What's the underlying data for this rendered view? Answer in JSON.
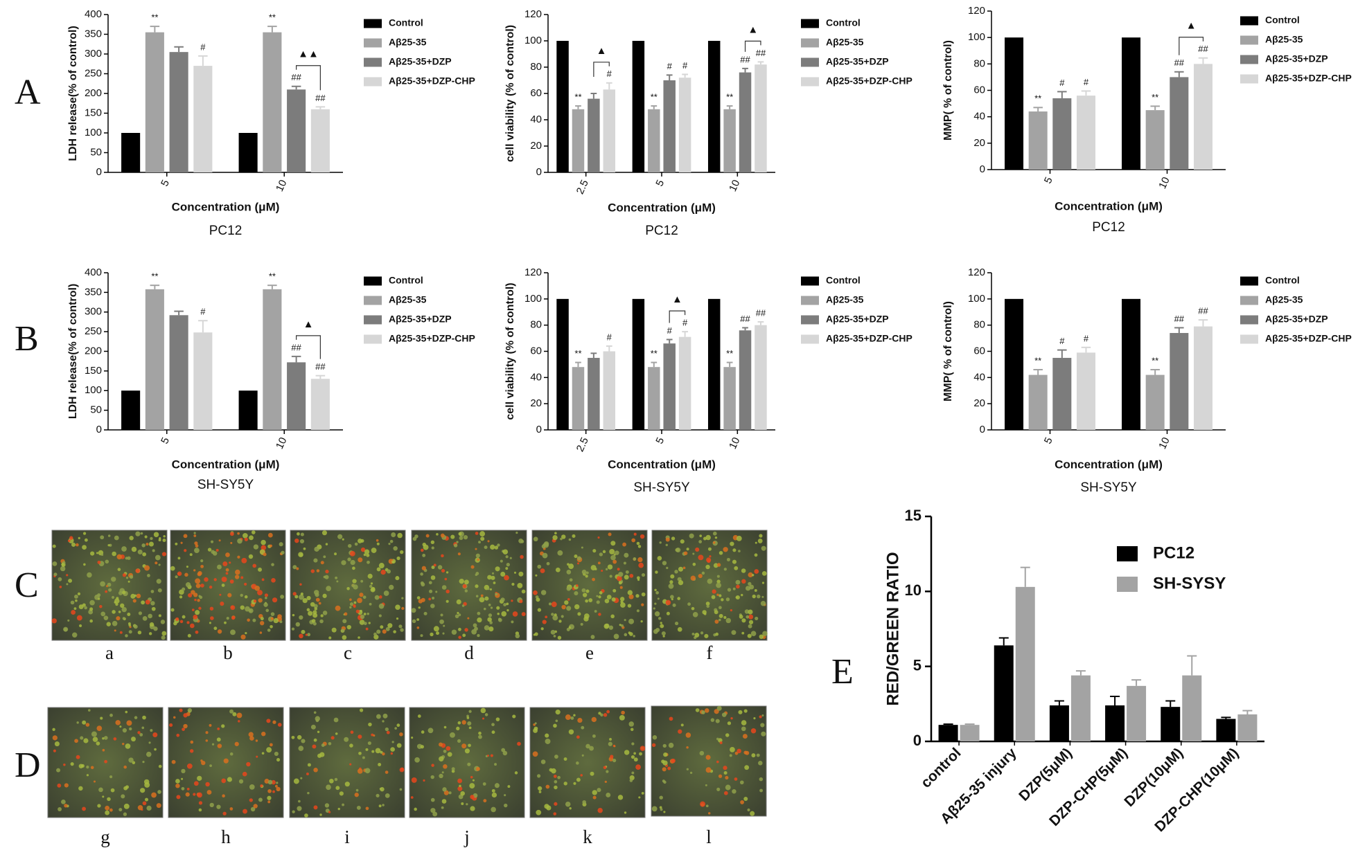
{
  "panel_labels": [
    "A",
    "B",
    "C",
    "D",
    "E"
  ],
  "image_labels": [
    "a",
    "b",
    "c",
    "d",
    "e",
    "f",
    "g",
    "h",
    "i",
    "j",
    "k",
    "l"
  ],
  "chart_data": [
    {
      "type": "bar",
      "ylabel": "LDH release(% of control)",
      "xlabel": "Concentration (μM)",
      "subtitle": "PC12",
      "categories": [
        "5",
        "10"
      ],
      "ylim": [
        0,
        400
      ],
      "yticks": [
        0,
        50,
        100,
        150,
        200,
        250,
        300,
        350,
        400
      ],
      "series": [
        {
          "name": "Control",
          "color": "#000000",
          "values": [
            100,
            100
          ],
          "errors": [
            0,
            0
          ],
          "annotations": [
            null,
            null
          ]
        },
        {
          "name": "Aβ25-35",
          "color": "#a3a3a3",
          "values": [
            355,
            355
          ],
          "errors": [
            15,
            15
          ],
          "annotations": [
            "**",
            "**"
          ]
        },
        {
          "name": "Aβ25-35+DZP",
          "color": "#7c7c7c",
          "values": [
            305,
            210
          ],
          "errors": [
            13,
            8
          ],
          "annotations": [
            null,
            "##"
          ]
        },
        {
          "name": "Aβ25-35+DZP-CHP",
          "color": "#d6d6d6",
          "values": [
            270,
            160
          ],
          "errors": [
            25,
            6
          ],
          "annotations": [
            "#",
            "##"
          ]
        }
      ],
      "brackets": [
        {
          "category": "10",
          "label": "▲▲"
        }
      ]
    },
    {
      "type": "bar",
      "ylabel": "cell viability (% of control)",
      "xlabel": "Concentration (μM)",
      "subtitle": "PC12",
      "categories": [
        "2.5",
        "5",
        "10"
      ],
      "ylim": [
        0,
        120
      ],
      "yticks": [
        0,
        20,
        40,
        60,
        80,
        100,
        120
      ],
      "series": [
        {
          "name": "Control",
          "color": "#000000",
          "values": [
            100,
            100,
            100
          ],
          "errors": [
            0,
            0,
            0
          ],
          "annotations": [
            null,
            null,
            null
          ]
        },
        {
          "name": "Aβ25-35",
          "color": "#a3a3a3",
          "values": [
            48,
            48,
            48
          ],
          "errors": [
            2.5,
            2.5,
            2.5
          ],
          "annotations": [
            "**",
            "**",
            "**"
          ]
        },
        {
          "name": "Aβ25-35+DZP",
          "color": "#7c7c7c",
          "values": [
            56,
            70,
            76
          ],
          "errors": [
            4,
            4,
            3
          ],
          "annotations": [
            null,
            "#",
            "##"
          ]
        },
        {
          "name": "Aβ25-35+DZP-CHP",
          "color": "#d6d6d6",
          "values": [
            63,
            72,
            82
          ],
          "errors": [
            5,
            2.5,
            2
          ],
          "annotations": [
            "#",
            "#",
            "##"
          ]
        }
      ],
      "brackets": [
        {
          "category": "2.5",
          "label": "▲"
        },
        {
          "category": "10",
          "label": "▲"
        }
      ]
    },
    {
      "type": "bar",
      "ylabel": "MMP( % of control)",
      "xlabel": "Concentration (μM)",
      "subtitle": "PC12",
      "categories": [
        "5",
        "10"
      ],
      "ylim": [
        0,
        120
      ],
      "yticks": [
        0,
        20,
        40,
        60,
        80,
        100,
        120
      ],
      "series": [
        {
          "name": "Control",
          "color": "#000000",
          "values": [
            100,
            100
          ],
          "errors": [
            0,
            0
          ],
          "annotations": [
            null,
            null
          ]
        },
        {
          "name": "Aβ25-35",
          "color": "#a3a3a3",
          "values": [
            44,
            45
          ],
          "errors": [
            3,
            3
          ],
          "annotations": [
            "**",
            "**"
          ]
        },
        {
          "name": "Aβ25-35+DZP",
          "color": "#7c7c7c",
          "values": [
            54,
            70
          ],
          "errors": [
            5,
            4
          ],
          "annotations": [
            "#",
            "##"
          ]
        },
        {
          "name": "Aβ25-35+DZP-CHP",
          "color": "#d6d6d6",
          "values": [
            56,
            80
          ],
          "errors": [
            3.5,
            4.5
          ],
          "annotations": [
            "#",
            "##"
          ]
        }
      ],
      "brackets": [
        {
          "category": "10",
          "label": "▲"
        }
      ]
    },
    {
      "type": "bar",
      "ylabel": "LDH release(% of control)",
      "xlabel": "Concentration (μM)",
      "subtitle": "SH-SY5Y",
      "categories": [
        "5",
        "10"
      ],
      "ylim": [
        0,
        400
      ],
      "yticks": [
        0,
        50,
        100,
        150,
        200,
        250,
        300,
        350,
        400
      ],
      "series": [
        {
          "name": "Control",
          "color": "#000000",
          "values": [
            100,
            100
          ],
          "errors": [
            0,
            0
          ],
          "annotations": [
            null,
            null
          ]
        },
        {
          "name": "Aβ25-35",
          "color": "#a3a3a3",
          "values": [
            358,
            358
          ],
          "errors": [
            10,
            10
          ],
          "annotations": [
            "**",
            "**"
          ]
        },
        {
          "name": "Aβ25-35+DZP",
          "color": "#7c7c7c",
          "values": [
            292,
            172
          ],
          "errors": [
            10,
            15
          ],
          "annotations": [
            null,
            "##"
          ]
        },
        {
          "name": "Aβ25-35+DZP-CHP",
          "color": "#d6d6d6",
          "values": [
            248,
            130
          ],
          "errors": [
            30,
            8
          ],
          "annotations": [
            "#",
            "##"
          ]
        }
      ],
      "brackets": [
        {
          "category": "10",
          "label": "▲"
        }
      ]
    },
    {
      "type": "bar",
      "ylabel": "cell viability (% of control)",
      "xlabel": "Concentration (μM)",
      "subtitle": "SH-SY5Y",
      "categories": [
        "2.5",
        "5",
        "10"
      ],
      "ylim": [
        0,
        120
      ],
      "yticks": [
        0,
        20,
        40,
        60,
        80,
        100,
        120
      ],
      "series": [
        {
          "name": "Control",
          "color": "#000000",
          "values": [
            100,
            100,
            100
          ],
          "errors": [
            0,
            0,
            0
          ],
          "annotations": [
            null,
            null,
            null
          ]
        },
        {
          "name": "Aβ25-35",
          "color": "#a3a3a3",
          "values": [
            48,
            48,
            48
          ],
          "errors": [
            3.5,
            3.5,
            3.5
          ],
          "annotations": [
            "**",
            "**",
            "**"
          ]
        },
        {
          "name": "Aβ25-35+DZP",
          "color": "#7c7c7c",
          "values": [
            55,
            66,
            76
          ],
          "errors": [
            3.5,
            3,
            2
          ],
          "annotations": [
            null,
            "#",
            "##"
          ]
        },
        {
          "name": "Aβ25-35+DZP-CHP",
          "color": "#d6d6d6",
          "values": [
            60,
            71,
            80
          ],
          "errors": [
            4,
            4,
            2.5
          ],
          "annotations": [
            "#",
            "#",
            "##"
          ]
        }
      ],
      "brackets": [
        {
          "category": "5",
          "label": "▲"
        }
      ]
    },
    {
      "type": "bar",
      "ylabel": "MMP( % of control)",
      "xlabel": "Concentration (μM)",
      "subtitle": "SH-SY5Y",
      "categories": [
        "5",
        "10"
      ],
      "ylim": [
        0,
        120
      ],
      "yticks": [
        0,
        20,
        40,
        60,
        80,
        100,
        120
      ],
      "series": [
        {
          "name": "Control",
          "color": "#000000",
          "values": [
            100,
            100
          ],
          "errors": [
            0,
            0
          ],
          "annotations": [
            null,
            null
          ]
        },
        {
          "name": "Aβ25-35",
          "color": "#a3a3a3",
          "values": [
            42,
            42
          ],
          "errors": [
            4,
            4
          ],
          "annotations": [
            "**",
            "**"
          ]
        },
        {
          "name": "Aβ25-35+DZP",
          "color": "#7c7c7c",
          "values": [
            55,
            74
          ],
          "errors": [
            6,
            4
          ],
          "annotations": [
            "#",
            "##"
          ]
        },
        {
          "name": "Aβ25-35+DZP-CHP",
          "color": "#d6d6d6",
          "values": [
            59,
            79
          ],
          "errors": [
            4,
            5
          ],
          "annotations": [
            "#",
            "##"
          ]
        }
      ],
      "brackets": []
    },
    {
      "type": "bar",
      "ylabel": "RED/GREEN RATIO",
      "categories": [
        "control",
        "Aβ25-35 injury",
        "DZP(5μM)",
        "DZP-CHP(5μM)",
        "DZP(10μM)",
        "DZP-CHP(10μM)"
      ],
      "ylim": [
        0,
        15
      ],
      "yticks": [
        0,
        5,
        10,
        15
      ],
      "series": [
        {
          "name": "PC12",
          "color": "#000000",
          "values": [
            1.1,
            6.4,
            2.4,
            2.4,
            2.3,
            1.5
          ],
          "errors": [
            0.05,
            0.5,
            0.3,
            0.6,
            0.4,
            0.1
          ]
        },
        {
          "name": "SH-SYSY",
          "color": "#a3a3a3",
          "values": [
            1.1,
            10.3,
            4.4,
            3.7,
            4.4,
            1.8
          ],
          "errors": [
            0.05,
            1.3,
            0.3,
            0.4,
            1.3,
            0.25
          ]
        }
      ],
      "brackets": []
    }
  ]
}
